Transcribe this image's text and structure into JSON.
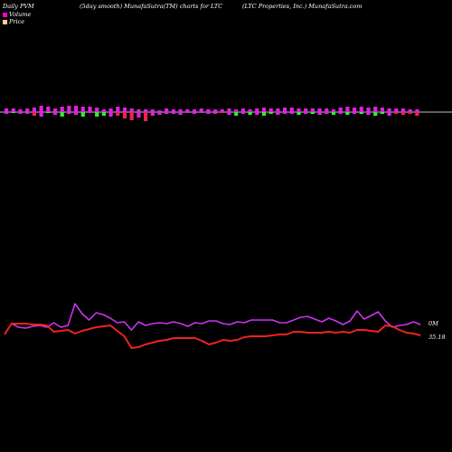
{
  "header": {
    "left": "Daily PVM",
    "center": "(5day smooth) MunafaSutra(TM) charts for LTC",
    "right": "(LTC Properties, Inc.) MunafaSutra.com"
  },
  "legend": [
    {
      "label": "Volume",
      "color": "#ff00cc"
    },
    {
      "label": "Price",
      "color": "#ffcc99"
    }
  ],
  "chart_data": [
    {
      "type": "bar",
      "title": "",
      "series": [
        {
          "name": "Volume",
          "values": [
            0.4,
            0.4,
            0.3,
            0.4,
            0.5,
            0.7,
            0.6,
            0.4,
            0.6,
            0.7,
            0.7,
            0.6,
            0.6,
            0.5,
            0.3,
            0.4,
            0.6,
            0.5,
            0.4,
            0.3,
            0.3,
            0.3,
            0.2,
            0.4,
            0.3,
            0.3,
            0.3,
            0.3,
            0.4,
            0.3,
            0.3,
            0.3,
            0.4,
            0.3,
            0.4,
            0.3,
            0.4,
            0.5,
            0.4,
            0.4,
            0.5,
            0.5,
            0.4,
            0.4,
            0.4,
            0.4,
            0.4,
            0.3,
            0.5,
            0.6,
            0.5,
            0.6,
            0.5,
            0.6,
            0.5,
            0.4,
            0.4,
            0.4,
            0.3,
            0.3
          ]
        },
        {
          "name": "",
          "values": [
            -0.2,
            -0.1,
            -0.2,
            -0.2,
            -0.4,
            -0.5,
            -0.1,
            -0.3,
            -0.5,
            -0.2,
            -0.3,
            -0.5,
            -0.1,
            -0.5,
            -0.4,
            -0.5,
            -0.4,
            -0.7,
            -0.9,
            -0.6,
            -1.0,
            -0.4,
            -0.3,
            -0.2,
            -0.2,
            -0.3,
            -0.1,
            -0.2,
            -0.1,
            -0.2,
            -0.2,
            -0.1,
            -0.3,
            -0.4,
            -0.2,
            -0.3,
            -0.3,
            -0.4,
            -0.2,
            -0.3,
            -0.2,
            -0.2,
            -0.3,
            -0.2,
            -0.2,
            -0.3,
            -0.2,
            -0.3,
            -0.2,
            -0.3,
            -0.2,
            -0.2,
            -0.3,
            -0.4,
            -0.2,
            -0.4,
            -0.2,
            -0.3,
            -0.2,
            -0.4
          ]
        }
      ],
      "bar_colors": [
        [
          "m",
          "m",
          "m",
          "m",
          "m",
          "m",
          "m",
          "m",
          "m",
          "m",
          "m",
          "m",
          "m",
          "m",
          "m",
          "m",
          "m",
          "m",
          "m",
          "m",
          "m",
          "m",
          "m",
          "m",
          "m",
          "m",
          "m",
          "m",
          "m",
          "m",
          "m",
          "m",
          "m",
          "m",
          "m",
          "m",
          "m",
          "m",
          "m",
          "m",
          "m",
          "m",
          "m",
          "m",
          "m",
          "m",
          "m",
          "m",
          "m",
          "m",
          "m",
          "m",
          "m",
          "m",
          "m",
          "m",
          "m",
          "m",
          "m",
          "m"
        ],
        [
          "m",
          "g",
          "m",
          "m",
          "r",
          "m",
          "g",
          "m",
          "g",
          "m",
          "m",
          "g",
          "m",
          "g",
          "g",
          "m",
          "r",
          "r",
          "r",
          "m",
          "r",
          "m",
          "m",
          "m",
          "m",
          "m",
          "m",
          "m",
          "m",
          "m",
          "m",
          "r",
          "m",
          "g",
          "m",
          "g",
          "m",
          "g",
          "g",
          "m",
          "m",
          "m",
          "g",
          "m",
          "g",
          "m",
          "m",
          "g",
          "m",
          "g",
          "m",
          "g",
          "m",
          "g",
          "g",
          "m",
          "r",
          "r",
          "r",
          "r"
        ]
      ],
      "colors": {
        "m": "#dd22dd",
        "g": "#33ee33",
        "r": "#ee2255",
        "axis": "#ffffff"
      }
    },
    {
      "type": "line",
      "title": "",
      "series": [
        {
          "name": "Volume",
          "color": "#cc33ee",
          "values": [
            370,
            358,
            362,
            363,
            361,
            360,
            362,
            357,
            362,
            360,
            336,
            347,
            354,
            346,
            348,
            352,
            357,
            356,
            365,
            356,
            360,
            358,
            357,
            358,
            356,
            358,
            361,
            357,
            358,
            355,
            355,
            358,
            359,
            356,
            357,
            354,
            354,
            354,
            354,
            357,
            357,
            354,
            351,
            350,
            353,
            356,
            352,
            355,
            359,
            355,
            344,
            353,
            349,
            345,
            355,
            362,
            360,
            359,
            356,
            359
          ]
        },
        {
          "name": "Price",
          "color": "#ee2222",
          "values": [
            370,
            358,
            358,
            358,
            359,
            359,
            360,
            367,
            366,
            365,
            369,
            366,
            364,
            362,
            361,
            360,
            366,
            372,
            385,
            384,
            381,
            379,
            377,
            376,
            374,
            374,
            374,
            374,
            377,
            381,
            379,
            376,
            377,
            376,
            373,
            372,
            372,
            372,
            371,
            370,
            370,
            367,
            367,
            368,
            368,
            368,
            367,
            368,
            367,
            368,
            365,
            365,
            366,
            367,
            360,
            361,
            365,
            368,
            369,
            371
          ]
        }
      ],
      "end_labels": {
        "volume": "0M",
        "price": "35.18"
      },
      "ylim": [
        330,
        390
      ]
    }
  ]
}
